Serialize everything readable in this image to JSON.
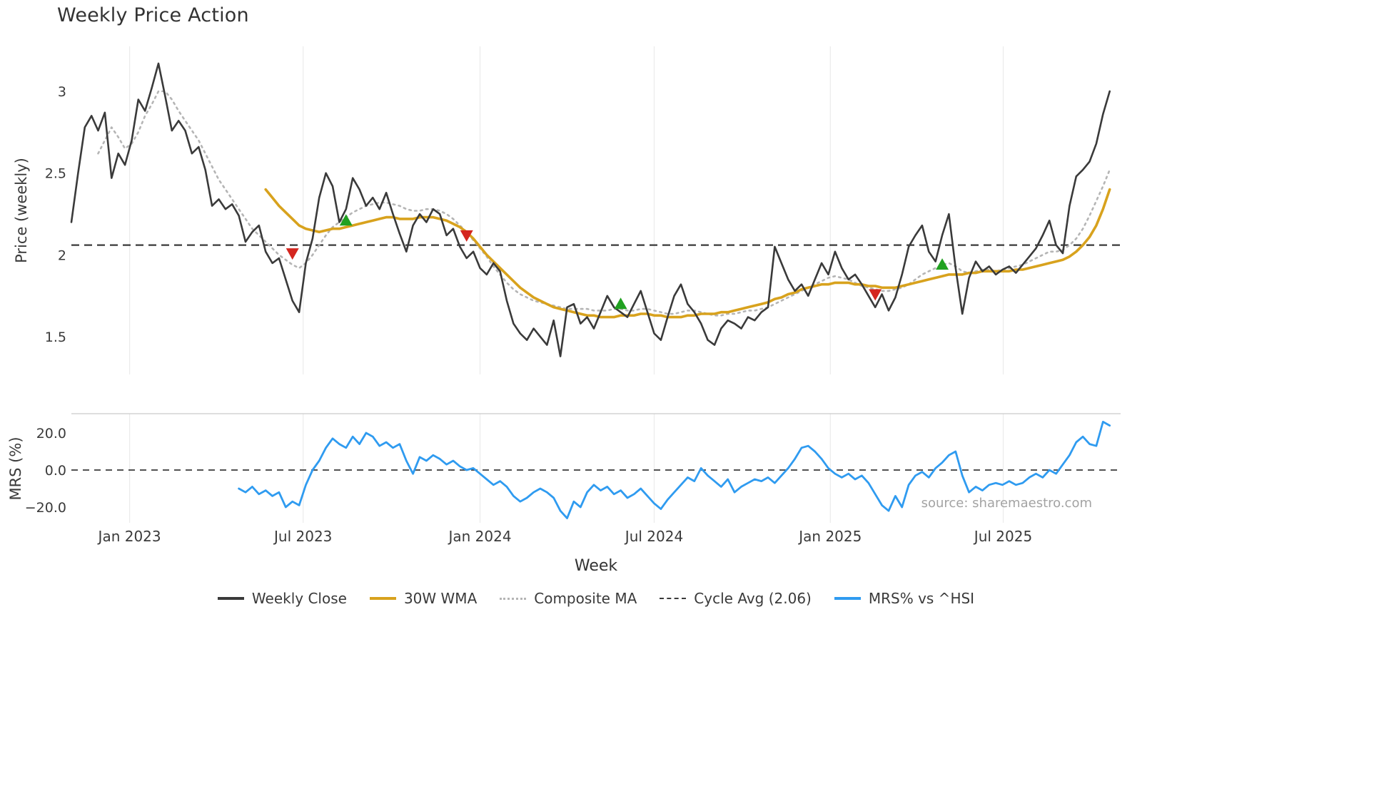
{
  "title": "Weekly Price Action",
  "source": "source: sharemaestro.com",
  "axes": {
    "price_label": "Price (weekly)",
    "mrs_label": "MRS (%)",
    "x_label": "Week"
  },
  "legend": [
    {
      "label": "Weekly Close",
      "color": "#3a3a3a",
      "style": "solid"
    },
    {
      "label": "30W WMA",
      "color": "#d8a21d",
      "style": "solid"
    },
    {
      "label": "Composite MA",
      "color": "#b5b5b5",
      "style": "dotted"
    },
    {
      "label": "Cycle Avg (2.06)",
      "color": "#3a3a3a",
      "style": "dashed"
    },
    {
      "label": "MRS% vs ^HSI",
      "color": "#2f9bf0",
      "style": "solid"
    }
  ],
  "chart_data": {
    "type": "line",
    "title": "Weekly Price Action",
    "xlabel": "Week",
    "x_unit": "week_index_from_2022-11-01",
    "grid": "vertical-only",
    "colors": {
      "close": "#3a3a3a",
      "wma": "#d8a21d",
      "composite": "#b5b5b5",
      "cycle_avg": "#3a3a3a",
      "mrs": "#2f9bf0",
      "buy": "#21a121",
      "sell": "#d4261f",
      "grid": "#ebebeb",
      "tick_text": "#3a3a3a",
      "panel_border": "#c9c9c9"
    },
    "x_ticks": [
      {
        "week": 8.7,
        "label": "Jan 2023"
      },
      {
        "week": 34.6,
        "label": "Jul 2023"
      },
      {
        "week": 61.0,
        "label": "Jan 2024"
      },
      {
        "week": 87.0,
        "label": "Jul 2024"
      },
      {
        "week": 113.3,
        "label": "Jan 2025"
      },
      {
        "week": 139.1,
        "label": "Jul 2025"
      }
    ],
    "panels": [
      {
        "name": "price",
        "ylabel": "Price (weekly)",
        "ylim": [
          1.27,
          3.28
        ],
        "cycle_avg": 2.06,
        "y_ticks": [
          {
            "value": 3,
            "label": "3"
          },
          {
            "value": 2.5,
            "label": "2.5"
          },
          {
            "value": 2,
            "label": "2"
          },
          {
            "value": 1.5,
            "label": "1.5"
          }
        ],
        "series": [
          {
            "name": "Weekly Close",
            "start_week": 0,
            "values": [
              2.2,
              2.5,
              2.78,
              2.85,
              2.76,
              2.87,
              2.47,
              2.62,
              2.55,
              2.7,
              2.95,
              2.88,
              3.02,
              3.17,
              2.97,
              2.76,
              2.82,
              2.76,
              2.62,
              2.66,
              2.52,
              2.3,
              2.34,
              2.28,
              2.31,
              2.24,
              2.08,
              2.14,
              2.18,
              2.02,
              1.95,
              1.98,
              1.85,
              1.72,
              1.65,
              1.95,
              2.1,
              2.35,
              2.5,
              2.42,
              2.2,
              2.28,
              2.47,
              2.4,
              2.3,
              2.35,
              2.28,
              2.38,
              2.25,
              2.13,
              2.02,
              2.18,
              2.25,
              2.2,
              2.28,
              2.25,
              2.12,
              2.16,
              2.05,
              1.98,
              2.02,
              1.92,
              1.88,
              1.95,
              1.9,
              1.72,
              1.58,
              1.52,
              1.48,
              1.55,
              1.5,
              1.45,
              1.6,
              1.38,
              1.68,
              1.7,
              1.58,
              1.62,
              1.55,
              1.65,
              1.75,
              1.68,
              1.65,
              1.62,
              1.7,
              1.78,
              1.65,
              1.52,
              1.48,
              1.62,
              1.75,
              1.82,
              1.7,
              1.65,
              1.58,
              1.48,
              1.45,
              1.55,
              1.6,
              1.58,
              1.55,
              1.62,
              1.6,
              1.65,
              1.68,
              2.05,
              1.95,
              1.85,
              1.78,
              1.82,
              1.75,
              1.85,
              1.95,
              1.88,
              2.02,
              1.92,
              1.85,
              1.88,
              1.82,
              1.75,
              1.68,
              1.76,
              1.66,
              1.74,
              1.88,
              2.05,
              2.12,
              2.18,
              2.02,
              1.96,
              2.12,
              2.25,
              1.92,
              1.64,
              1.86,
              1.96,
              1.9,
              1.93,
              1.88,
              1.91,
              1.93,
              1.89,
              1.94,
              1.99,
              2.04,
              2.12,
              2.21,
              2.06,
              2.01,
              2.3,
              2.48,
              2.52,
              2.57,
              2.68,
              2.86,
              3.0
            ]
          },
          {
            "name": "30W WMA",
            "start_week": 29,
            "values": [
              2.4,
              2.35,
              2.3,
              2.26,
              2.22,
              2.18,
              2.16,
              2.15,
              2.14,
              2.15,
              2.16,
              2.16,
              2.17,
              2.18,
              2.19,
              2.2,
              2.21,
              2.22,
              2.23,
              2.23,
              2.22,
              2.22,
              2.22,
              2.23,
              2.23,
              2.23,
              2.22,
              2.21,
              2.19,
              2.17,
              2.14,
              2.1,
              2.05,
              2.0,
              1.96,
              1.92,
              1.88,
              1.84,
              1.8,
              1.77,
              1.74,
              1.72,
              1.7,
              1.68,
              1.67,
              1.66,
              1.65,
              1.64,
              1.63,
              1.63,
              1.62,
              1.62,
              1.62,
              1.63,
              1.63,
              1.63,
              1.64,
              1.64,
              1.63,
              1.63,
              1.62,
              1.62,
              1.62,
              1.63,
              1.63,
              1.64,
              1.64,
              1.64,
              1.65,
              1.65,
              1.66,
              1.67,
              1.68,
              1.69,
              1.7,
              1.71,
              1.73,
              1.74,
              1.76,
              1.77,
              1.79,
              1.8,
              1.81,
              1.82,
              1.82,
              1.83,
              1.83,
              1.83,
              1.82,
              1.82,
              1.81,
              1.81,
              1.8,
              1.8,
              1.8,
              1.81,
              1.82,
              1.83,
              1.84,
              1.85,
              1.86,
              1.87,
              1.88,
              1.88,
              1.88,
              1.89,
              1.89,
              1.9,
              1.9,
              1.9,
              1.9,
              1.9,
              1.91,
              1.91,
              1.92,
              1.93,
              1.94,
              1.95,
              1.96,
              1.97,
              1.99,
              2.02,
              2.06,
              2.11,
              2.18,
              2.28,
              2.4
            ]
          },
          {
            "name": "Composite MA",
            "start_week": 4,
            "values": [
              2.62,
              2.7,
              2.78,
              2.72,
              2.65,
              2.68,
              2.75,
              2.85,
              2.92,
              3.0,
              3.0,
              2.95,
              2.88,
              2.82,
              2.76,
              2.7,
              2.62,
              2.54,
              2.46,
              2.4,
              2.34,
              2.28,
              2.22,
              2.16,
              2.12,
              2.08,
              2.04,
              2.0,
              1.97,
              1.94,
              1.92,
              1.95,
              2.0,
              2.06,
              2.12,
              2.17,
              2.2,
              2.23,
              2.26,
              2.28,
              2.3,
              2.31,
              2.32,
              2.32,
              2.31,
              2.3,
              2.28,
              2.27,
              2.27,
              2.28,
              2.28,
              2.27,
              2.25,
              2.22,
              2.18,
              2.14,
              2.09,
              2.04,
              1.99,
              1.93,
              1.88,
              1.83,
              1.79,
              1.76,
              1.74,
              1.72,
              1.71,
              1.7,
              1.69,
              1.68,
              1.67,
              1.67,
              1.67,
              1.67,
              1.66,
              1.66,
              1.66,
              1.67,
              1.67,
              1.66,
              1.66,
              1.67,
              1.67,
              1.66,
              1.65,
              1.64,
              1.64,
              1.65,
              1.66,
              1.66,
              1.65,
              1.64,
              1.63,
              1.63,
              1.64,
              1.64,
              1.65,
              1.66,
              1.66,
              1.67,
              1.68,
              1.7,
              1.72,
              1.74,
              1.76,
              1.78,
              1.8,
              1.82,
              1.84,
              1.86,
              1.87,
              1.86,
              1.85,
              1.83,
              1.81,
              1.8,
              1.79,
              1.78,
              1.78,
              1.79,
              1.8,
              1.82,
              1.85,
              1.88,
              1.9,
              1.92,
              1.94,
              1.95,
              1.93,
              1.9,
              1.89,
              1.9,
              1.91,
              1.91,
              1.9,
              1.91,
              1.92,
              1.93,
              1.94,
              1.96,
              1.98,
              2.0,
              2.02,
              2.02,
              2.03,
              2.06,
              2.1,
              2.16,
              2.24,
              2.33,
              2.42,
              2.52
            ]
          }
        ],
        "signals": {
          "buy": [
            {
              "week": 41,
              "price": 2.21
            },
            {
              "week": 82,
              "price": 1.7
            },
            {
              "week": 130,
              "price": 1.94
            }
          ],
          "sell": [
            {
              "week": 33,
              "price": 2.01
            },
            {
              "week": 59,
              "price": 2.12
            },
            {
              "week": 120,
              "price": 1.76
            }
          ]
        }
      },
      {
        "name": "mrs",
        "ylabel": "MRS (%)",
        "ylim": [
          -30,
          30.5
        ],
        "zero_line": 0,
        "y_ticks": [
          {
            "value": 20,
            "label": "20.0"
          },
          {
            "value": 0,
            "label": "0.0"
          },
          {
            "value": -20,
            "label": "−20.0"
          }
        ],
        "series": [
          {
            "name": "MRS% vs ^HSI",
            "start_week": 25,
            "values": [
              -10,
              -12,
              -9,
              -13,
              -11,
              -14,
              -12,
              -20,
              -17,
              -19,
              -8,
              0,
              5,
              12,
              17,
              14,
              12,
              18,
              14,
              20,
              18,
              13,
              15,
              12,
              14,
              5,
              -2,
              7,
              5,
              8,
              6,
              3,
              5,
              2,
              0,
              1,
              -2,
              -5,
              -8,
              -6,
              -9,
              -14,
              -17,
              -15,
              -12,
              -10,
              -12,
              -15,
              -22,
              -26,
              -17,
              -20,
              -12,
              -8,
              -11,
              -9,
              -13,
              -11,
              -15,
              -13,
              -10,
              -14,
              -18,
              -21,
              -16,
              -12,
              -8,
              -4,
              -6,
              1,
              -3,
              -6,
              -9,
              -5,
              -12,
              -9,
              -7,
              -5,
              -6,
              -4,
              -7,
              -3,
              1,
              6,
              12,
              13,
              10,
              6,
              1,
              -2,
              -4,
              -2,
              -5,
              -3,
              -7,
              -13,
              -19,
              -22,
              -14,
              -20,
              -8,
              -3,
              -1,
              -4,
              1,
              4,
              8,
              10,
              -3,
              -12,
              -9,
              -11,
              -8,
              -7,
              -8,
              -6,
              -8,
              -7,
              -4,
              -2,
              -4,
              0,
              -2,
              3,
              8,
              15,
              18,
              14,
              13,
              26,
              24
            ]
          }
        ]
      }
    ]
  }
}
